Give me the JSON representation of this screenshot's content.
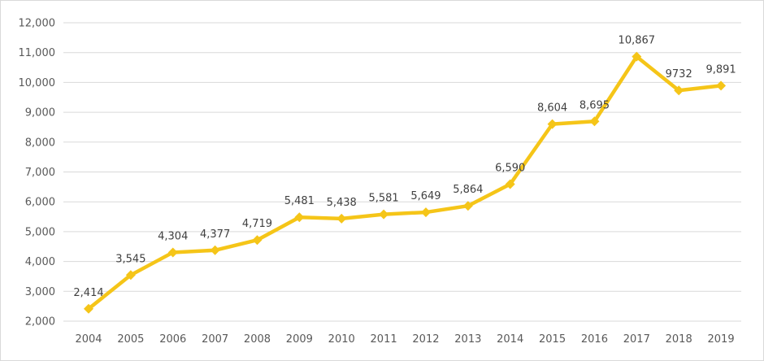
{
  "chart_data": {
    "type": "line",
    "title": "",
    "xlabel": "",
    "ylabel": "",
    "categories": [
      "2004",
      "2005",
      "2006",
      "2007",
      "2008",
      "2009",
      "2010",
      "2011",
      "2012",
      "2013",
      "2014",
      "2015",
      "2016",
      "2017",
      "2018",
      "2019"
    ],
    "series": [
      {
        "name": "Series 1",
        "values": [
          2414,
          3545,
          4304,
          4377,
          4719,
          5481,
          5438,
          5581,
          5649,
          5864,
          6590,
          8604,
          8695,
          10867,
          9732,
          9891
        ],
        "data_labels": [
          "2,414",
          "3,545",
          "4,304",
          "4,377",
          "4,719",
          "5,481",
          "5,438",
          "5,581",
          "5,649",
          "5,864",
          "6,590",
          "8,604",
          "8,695",
          "10,867",
          "9732",
          "9,891"
        ],
        "color": "#f5c518"
      }
    ],
    "ylim": [
      2000,
      12000
    ],
    "yticks": [
      2000,
      3000,
      4000,
      5000,
      6000,
      7000,
      8000,
      9000,
      10000,
      11000,
      12000
    ],
    "ytick_labels": [
      "2,000",
      "3,000",
      "4,000",
      "5,000",
      "6,000",
      "7,000",
      "8,000",
      "9,000",
      "10,000",
      "11,000",
      "12,000"
    ],
    "grid": true,
    "legend": "none"
  }
}
